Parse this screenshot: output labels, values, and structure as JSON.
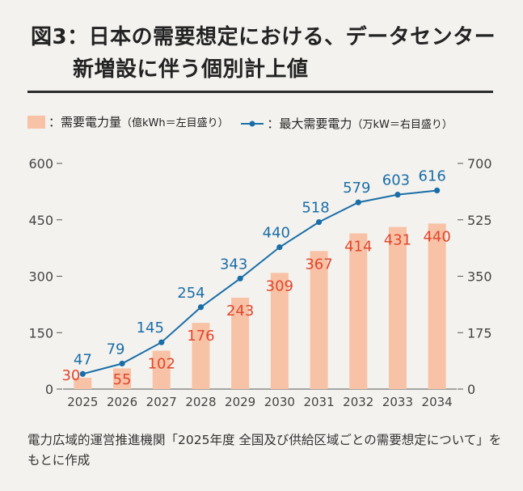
{
  "title": {
    "line1": "図3：日本の需要想定における、データセンター",
    "line2": "新増設に伴う個別計上値"
  },
  "legend": {
    "bar_label": "：需要電力量",
    "bar_unit": "（億kWh＝左目盛り）",
    "line_label": "：最大需要電力",
    "line_unit": "（万kW＝右目盛り）"
  },
  "colors": {
    "bar": "#f8c2a6",
    "bar_label": "#e0462c",
    "line": "#1a6ea8",
    "line_label": "#1a6ea8",
    "axis": "#555555",
    "grid": "#bfbfbf"
  },
  "chart_data": {
    "type": "bar+line",
    "categories": [
      "2025",
      "2026",
      "2027",
      "2028",
      "2029",
      "2030",
      "2031",
      "2032",
      "2033",
      "2034"
    ],
    "series": [
      {
        "name": "需要電力量",
        "type": "bar",
        "axis": "left",
        "values": [
          30,
          55,
          102,
          176,
          243,
          309,
          367,
          414,
          431,
          440
        ]
      },
      {
        "name": "最大需要電力",
        "type": "line",
        "axis": "right",
        "values": [
          47,
          79,
          145,
          254,
          343,
          440,
          518,
          579,
          603,
          616
        ]
      }
    ],
    "y_left": {
      "ticks": [
        "0",
        "150",
        "300",
        "450",
        "600"
      ],
      "range": [
        0,
        600
      ]
    },
    "y_right": {
      "ticks": [
        "0",
        "175",
        "350",
        "525",
        "700"
      ],
      "range": [
        0,
        700
      ]
    },
    "grid": false
  },
  "source": "電力広域的運営推進機関「2025年度 全国及び供給区域ごとの需要想定について」をもとに作成"
}
